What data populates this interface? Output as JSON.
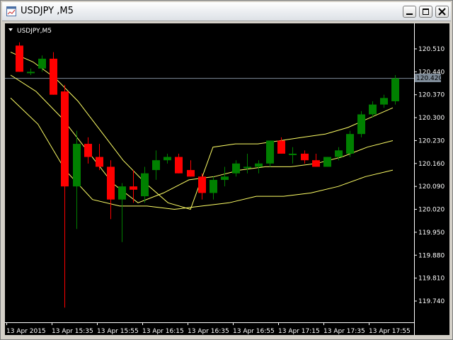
{
  "window": {
    "title": "USDJPY ,M5",
    "minimize_label": "minimize",
    "maximize_label": "maximize",
    "close_label": "close"
  },
  "chart": {
    "label": "USDJPY,M5",
    "current_price": "120.420",
    "background": "#000000",
    "bull_color": "#008000",
    "bear_color": "#ff0000",
    "band_color": "#ffff66",
    "price_line_color": "#7f8c99",
    "text_color": "#ffffff"
  },
  "chart_data": {
    "type": "candlestick",
    "symbol": "USDJPY",
    "timeframe": "M5",
    "y_ticks": [
      "120.510",
      "120.440",
      "120.370",
      "120.300",
      "120.230",
      "120.160",
      "120.090",
      "120.020",
      "119.950",
      "119.880",
      "119.810",
      "119.740"
    ],
    "x_ticks": [
      "13 Apr 2015",
      "13 Apr 15:35",
      "13 Apr 15:55",
      "13 Apr 16:15",
      "13 Apr 16:35",
      "13 Apr 16:55",
      "13 Apr 17:15",
      "13 Apr 17:35",
      "13 Apr 17:55"
    ],
    "current_price": 120.42,
    "candles": [
      {
        "o": 120.52,
        "h": 120.53,
        "l": 120.44,
        "c": 120.44
      },
      {
        "o": 120.44,
        "h": 120.45,
        "l": 120.43,
        "c": 120.44
      },
      {
        "o": 120.45,
        "h": 120.49,
        "l": 120.44,
        "c": 120.48
      },
      {
        "o": 120.48,
        "h": 120.5,
        "l": 120.37,
        "c": 120.37
      },
      {
        "o": 120.38,
        "h": 120.4,
        "l": 119.72,
        "c": 120.09
      },
      {
        "o": 120.09,
        "h": 120.26,
        "l": 119.96,
        "c": 120.22
      },
      {
        "o": 120.22,
        "h": 120.24,
        "l": 120.16,
        "c": 120.18
      },
      {
        "o": 120.18,
        "h": 120.22,
        "l": 120.14,
        "c": 120.15
      },
      {
        "o": 120.15,
        "h": 120.17,
        "l": 119.99,
        "c": 120.05
      },
      {
        "o": 120.05,
        "h": 120.1,
        "l": 119.92,
        "c": 120.09
      },
      {
        "o": 120.09,
        "h": 120.14,
        "l": 120.04,
        "c": 120.08
      },
      {
        "o": 120.06,
        "h": 120.15,
        "l": 120.04,
        "c": 120.13
      },
      {
        "o": 120.14,
        "h": 120.2,
        "l": 120.11,
        "c": 120.17
      },
      {
        "o": 120.17,
        "h": 120.19,
        "l": 120.16,
        "c": 120.18
      },
      {
        "o": 120.18,
        "h": 120.19,
        "l": 120.13,
        "c": 120.13
      },
      {
        "o": 120.14,
        "h": 120.17,
        "l": 120.12,
        "c": 120.12
      },
      {
        "o": 120.12,
        "h": 120.13,
        "l": 120.05,
        "c": 120.07
      },
      {
        "o": 120.07,
        "h": 120.12,
        "l": 120.05,
        "c": 120.11
      },
      {
        "o": 120.11,
        "h": 120.15,
        "l": 120.09,
        "c": 120.12
      },
      {
        "o": 120.13,
        "h": 120.17,
        "l": 120.12,
        "c": 120.16
      },
      {
        "o": 120.15,
        "h": 120.19,
        "l": 120.13,
        "c": 120.15
      },
      {
        "o": 120.15,
        "h": 120.17,
        "l": 120.13,
        "c": 120.16
      },
      {
        "o": 120.16,
        "h": 120.23,
        "l": 120.15,
        "c": 120.23
      },
      {
        "o": 120.23,
        "h": 120.24,
        "l": 120.19,
        "c": 120.19
      },
      {
        "o": 120.19,
        "h": 120.21,
        "l": 120.16,
        "c": 120.19
      },
      {
        "o": 120.19,
        "h": 120.2,
        "l": 120.16,
        "c": 120.17
      },
      {
        "o": 120.17,
        "h": 120.19,
        "l": 120.15,
        "c": 120.15
      },
      {
        "o": 120.15,
        "h": 120.18,
        "l": 120.15,
        "c": 120.18
      },
      {
        "o": 120.18,
        "h": 120.21,
        "l": 120.17,
        "c": 120.2
      },
      {
        "o": 120.19,
        "h": 120.26,
        "l": 120.18,
        "c": 120.25
      },
      {
        "o": 120.25,
        "h": 120.32,
        "l": 120.24,
        "c": 120.31
      },
      {
        "o": 120.31,
        "h": 120.35,
        "l": 120.3,
        "c": 120.34
      },
      {
        "o": 120.34,
        "h": 120.37,
        "l": 120.33,
        "c": 120.36
      },
      {
        "o": 120.35,
        "h": 120.43,
        "l": 120.34,
        "c": 120.42
      }
    ],
    "upper_band": [
      120.5,
      120.47,
      120.42,
      120.35,
      120.26,
      120.17,
      120.1,
      120.04,
      120.02,
      120.21,
      120.22,
      120.22,
      120.23,
      120.24,
      120.25,
      120.27,
      120.3,
      120.33
    ],
    "middle_band": [
      120.43,
      120.38,
      120.3,
      120.2,
      120.1,
      120.04,
      120.07,
      120.11,
      120.12,
      120.14,
      120.15,
      120.15,
      120.16,
      120.18,
      120.21,
      120.23
    ],
    "lower_band": [
      120.36,
      120.28,
      120.14,
      120.05,
      120.03,
      120.03,
      120.02,
      120.03,
      120.04,
      120.06,
      120.06,
      120.07,
      120.09,
      120.12,
      120.14
    ],
    "band_count_note": ""
  }
}
